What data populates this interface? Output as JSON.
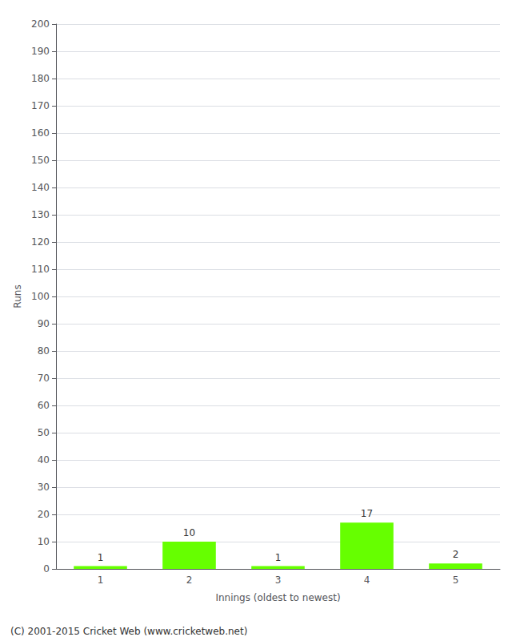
{
  "chart_data": {
    "type": "bar",
    "xlabel": "Innings (oldest to newest)",
    "ylabel": "Runs",
    "categories": [
      "1",
      "2",
      "3",
      "4",
      "5"
    ],
    "values": [
      1,
      10,
      1,
      17,
      2
    ],
    "color": "#66ff00",
    "ylim": [
      0,
      200
    ],
    "yticks": [
      0,
      10,
      20,
      30,
      40,
      50,
      60,
      70,
      80,
      90,
      100,
      110,
      120,
      130,
      140,
      150,
      160,
      170,
      180,
      190,
      200
    ],
    "grid": true,
    "data_labels": true,
    "footer": "(C) 2001-2015 Cricket Web (www.cricketweb.net)"
  }
}
